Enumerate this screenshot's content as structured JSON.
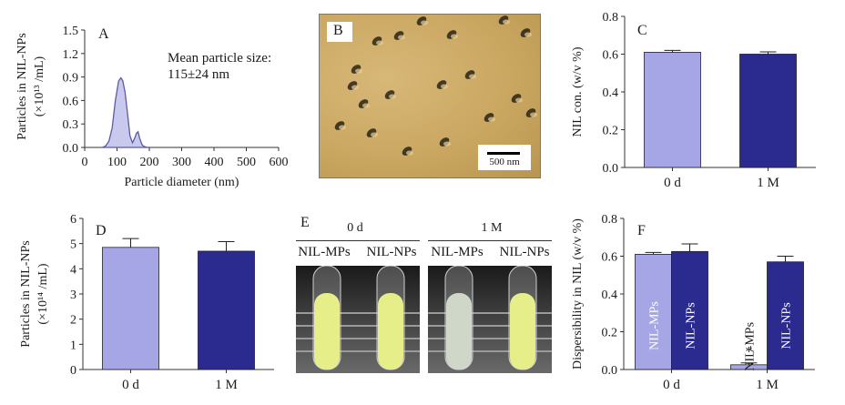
{
  "colors": {
    "light": "#a6a6e6",
    "dark": "#2b2a8e",
    "curve_fill": "#c9c9ee",
    "curve_stroke": "#5b5ba8",
    "axis": "#333333"
  },
  "chart_data": [
    {
      "panel": "A",
      "type": "area",
      "xlabel": "Particle diameter (nm)",
      "ylabel_line1": "Particles in NIL-NPs",
      "ylabel_line2": "(×10¹³ /mL)",
      "xlim": [
        0,
        600
      ],
      "ylim": [
        0,
        1.5
      ],
      "xticks": [
        0,
        100,
        200,
        300,
        400,
        500,
        600
      ],
      "yticks": [
        "0.0",
        "0.3",
        "0.6",
        "0.9",
        "1.2",
        "1.5"
      ],
      "annotation_line1": "Mean particle size:",
      "annotation_line2": "115±24 nm",
      "x": [
        55,
        65,
        75,
        85,
        95,
        105,
        112,
        118,
        125,
        132,
        140,
        148,
        155,
        160,
        165,
        170,
        178,
        185,
        195
      ],
      "y": [
        0,
        0.02,
        0.08,
        0.25,
        0.6,
        0.85,
        0.89,
        0.85,
        0.7,
        0.45,
        0.15,
        0.06,
        0.12,
        0.18,
        0.2,
        0.12,
        0.03,
        0.01,
        0
      ]
    },
    {
      "panel": "C",
      "type": "bar",
      "categories": [
        "0 d",
        "1 M"
      ],
      "values": [
        0.61,
        0.6
      ],
      "errors": [
        0.01,
        0.012
      ],
      "ylabel": "NIL con. (w/v %)",
      "ylim": [
        0,
        0.8
      ],
      "yticks": [
        "0.0",
        "0.2",
        "0.4",
        "0.6",
        "0.8"
      ]
    },
    {
      "panel": "D",
      "type": "bar",
      "categories": [
        "0 d",
        "1 M"
      ],
      "values": [
        4.85,
        4.7
      ],
      "errors": [
        0.35,
        0.38
      ],
      "ylabel_line1": "Particles in NIL-NPs",
      "ylabel_line2": "(×10¹⁴ /mL)",
      "ylim": [
        0,
        6
      ],
      "yticks": [
        "0",
        "1",
        "2",
        "3",
        "4",
        "5",
        "6"
      ]
    },
    {
      "panel": "F",
      "type": "bar",
      "categories": [
        "0 d",
        "1 M"
      ],
      "series": [
        {
          "name": "NIL-MPs",
          "values": [
            0.61,
            0.025
          ],
          "errors": [
            0.01,
            0.01
          ]
        },
        {
          "name": "NIL-NPs",
          "values": [
            0.625,
            0.57
          ],
          "errors": [
            0.04,
            0.03
          ]
        }
      ],
      "ylabel": "Dispersibility in NIL (w/v %)",
      "ylim": [
        0,
        0.8
      ],
      "yticks": [
        "0.0",
        "0.2",
        "0.4",
        "0.6",
        "0.8"
      ],
      "significance": "*"
    }
  ],
  "panel_letters": {
    "a": "A",
    "b": "B",
    "c": "C",
    "d": "D",
    "e": "E",
    "f": "F"
  },
  "panel_b": {
    "scale_label": "500 nm"
  },
  "panel_e": {
    "group_left": "0 d",
    "group_right": "1 M",
    "tube_labels": [
      "NIL-MPs",
      "NIL-NPs",
      "NIL-MPs",
      "NIL-NPs"
    ]
  }
}
